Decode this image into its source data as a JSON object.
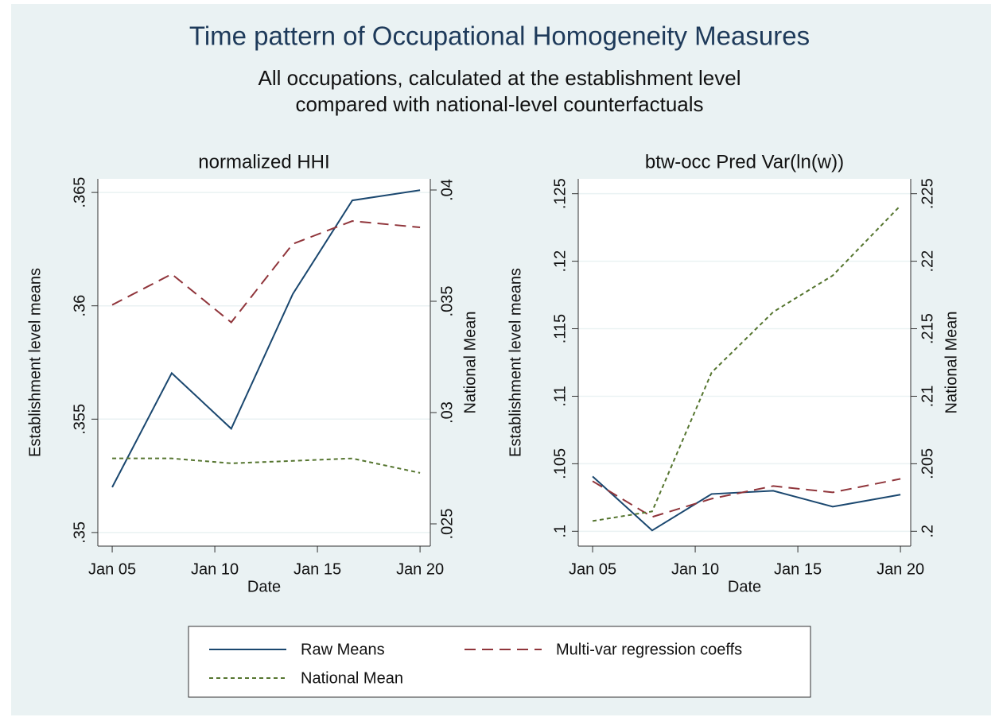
{
  "title": "Time pattern of Occupational Homogeneity Measures",
  "subtitle": [
    "All occupations, calculated at the establishment level",
    "compared with national-level counterfactuals"
  ],
  "chart_data": [
    {
      "type": "line",
      "title": "normalized HHI",
      "xlabel": "Date",
      "ylabel": "Establishment level means",
      "y2label": "National Mean",
      "x": [
        2005,
        2007.9,
        2010.8,
        2013.8,
        2016.7,
        2020
      ],
      "xlim": [
        2004.3,
        2020.5
      ],
      "xticks": [
        {
          "value": 2005,
          "label": "Jan 05"
        },
        {
          "value": 2010,
          "label": "Jan 10"
        },
        {
          "value": 2015,
          "label": "Jan 15"
        },
        {
          "value": 2020,
          "label": "Jan 20"
        }
      ],
      "ylim": [
        0.3494,
        0.3656
      ],
      "yticks": [
        {
          "value": 0.35,
          "label": ".35"
        },
        {
          "value": 0.355,
          "label": ".355"
        },
        {
          "value": 0.36,
          "label": ".36"
        },
        {
          "value": 0.365,
          "label": ".365"
        }
      ],
      "y2lim": [
        0.024,
        0.0405
      ],
      "y2ticks": [
        {
          "value": 0.025,
          "label": ".025"
        },
        {
          "value": 0.03,
          "label": ".03"
        },
        {
          "value": 0.035,
          "label": ".035"
        },
        {
          "value": 0.04,
          "label": ".04"
        }
      ],
      "grid": true,
      "series": [
        {
          "name": "Raw Means",
          "color": "#1a476f",
          "linestyle": "solid",
          "values": [
            0.352,
            0.35703,
            0.35458,
            0.36052,
            0.36465,
            0.3651
          ]
        },
        {
          "name": "Multi-var regression coeffs",
          "color": "#90353b",
          "linestyle": "dashed",
          "values": [
            0.36004,
            0.3614,
            0.35927,
            0.36273,
            0.36374,
            0.36346
          ]
        },
        {
          "name": "National Mean",
          "color": "#55752f",
          "linestyle": "dotted",
          "axis": "y2",
          "values": [
            0.02794,
            0.02794,
            0.02772,
            0.02783,
            0.02794,
            0.02729
          ]
        }
      ]
    },
    {
      "type": "line",
      "title": "btw-occ Pred Var(ln(w))",
      "xlabel": "Date",
      "ylabel": "Establishment level means",
      "y2label": "National Mean",
      "x": [
        2005,
        2007.9,
        2010.8,
        2013.8,
        2016.7,
        2020
      ],
      "xlim": [
        2004.3,
        2020.5
      ],
      "xticks": [
        {
          "value": 2005,
          "label": "Jan 05"
        },
        {
          "value": 2010,
          "label": "Jan 10"
        },
        {
          "value": 2015,
          "label": "Jan 15"
        },
        {
          "value": 2020,
          "label": "Jan 20"
        }
      ],
      "ylim": [
        0.0989,
        0.1261
      ],
      "yticks": [
        {
          "value": 0.1,
          "label": ".1"
        },
        {
          "value": 0.105,
          "label": ".105"
        },
        {
          "value": 0.11,
          "label": ".11"
        },
        {
          "value": 0.115,
          "label": ".115"
        },
        {
          "value": 0.12,
          "label": ".12"
        },
        {
          "value": 0.125,
          "label": ".125"
        }
      ],
      "y2lim": [
        0.1989,
        0.2261
      ],
      "y2ticks": [
        {
          "value": 0.2,
          "label": ".2"
        },
        {
          "value": 0.205,
          "label": ".205"
        },
        {
          "value": 0.21,
          "label": ".21"
        },
        {
          "value": 0.215,
          "label": ".215"
        },
        {
          "value": 0.22,
          "label": ".22"
        },
        {
          "value": 0.225,
          "label": ".225"
        }
      ],
      "grid": true,
      "series": [
        {
          "name": "Raw Means",
          "color": "#1a476f",
          "linestyle": "solid",
          "values": [
            0.10406,
            0.10006,
            0.10276,
            0.103,
            0.10182,
            0.10271
          ]
        },
        {
          "name": "Multi-var regression coeffs",
          "color": "#90353b",
          "linestyle": "dashed",
          "values": [
            0.10371,
            0.10106,
            0.10241,
            0.10335,
            0.10288,
            0.10388
          ]
        },
        {
          "name": "National Mean",
          "color": "#55752f",
          "linestyle": "dotted",
          "axis": "y2",
          "values": [
            0.20076,
            0.20147,
            0.21176,
            0.21624,
            0.21894,
            0.22412
          ]
        }
      ]
    }
  ]
}
